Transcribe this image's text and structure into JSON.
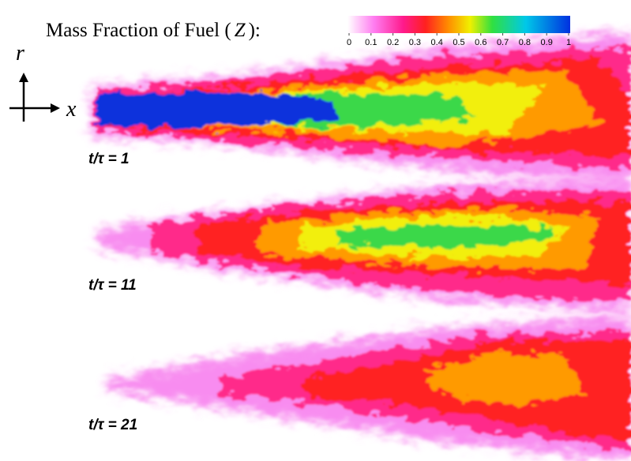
{
  "title": {
    "text": "Mass Fraction of Fuel (",
    "symbol": "Z",
    "close": "):"
  },
  "colorbar": {
    "ticks": [
      0,
      0.1,
      0.2,
      0.3,
      0.4,
      0.5,
      0.6,
      0.7,
      0.8,
      0.9,
      1
    ]
  },
  "axes": {
    "radial": "r",
    "axial": "x"
  },
  "panels": [
    {
      "label": "t/τ = 1"
    },
    {
      "label": "t/τ = 11"
    },
    {
      "label": "t/τ = 21"
    }
  ]
}
